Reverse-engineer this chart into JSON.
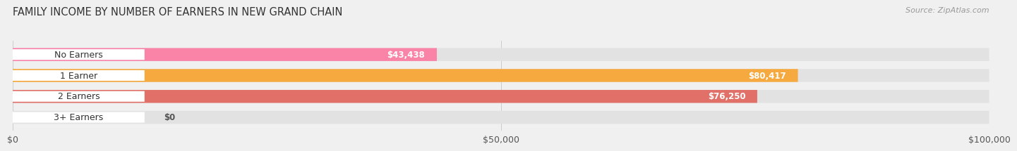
{
  "title": "FAMILY INCOME BY NUMBER OF EARNERS IN NEW GRAND CHAIN",
  "source": "Source: ZipAtlas.com",
  "categories": [
    "No Earners",
    "1 Earner",
    "2 Earners",
    "3+ Earners"
  ],
  "values": [
    43438,
    80417,
    76250,
    0
  ],
  "bar_colors": [
    "#f984a8",
    "#f5a93e",
    "#e07068",
    "#a8c4e0"
  ],
  "value_labels": [
    "$43,438",
    "$80,417",
    "$76,250",
    "$0"
  ],
  "xlim": [
    0,
    100000
  ],
  "xticks": [
    0,
    50000,
    100000
  ],
  "xtick_labels": [
    "$0",
    "$50,000",
    "$100,000"
  ],
  "background_color": "#f0f0f0",
  "bar_bg_color": "#e2e2e2",
  "title_fontsize": 10.5,
  "tick_fontsize": 9,
  "label_fontsize": 9,
  "value_fontsize": 8.5
}
